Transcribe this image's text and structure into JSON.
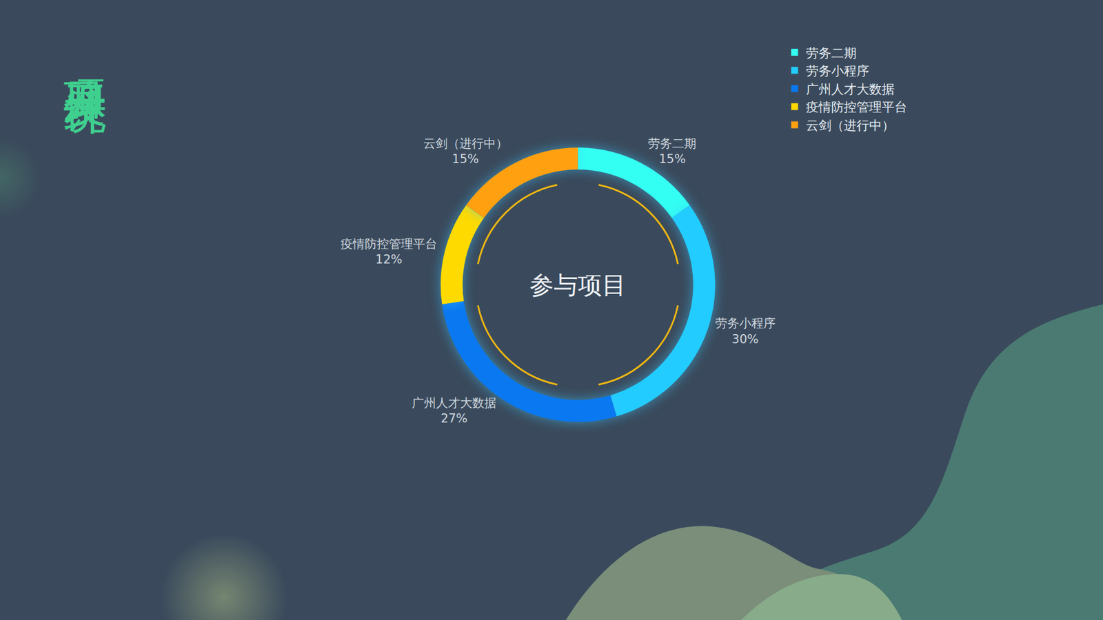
{
  "chart_data": {
    "type": "pie",
    "title": "项目开发统计",
    "center_text": "参与项目",
    "categories": [
      "劳务二期",
      "劳务小程序",
      "广州人才大数据",
      "疫情防控管理平台",
      "云剑（进行中）"
    ],
    "values": [
      15,
      30,
      27,
      12,
      15
    ],
    "value_labels": [
      "15%",
      "30%",
      "27%",
      "12%",
      "15%"
    ],
    "colors": [
      "#33fff2",
      "#22ccff",
      "#0a78f0",
      "#ffda00",
      "#ffa011"
    ],
    "data_labels": true,
    "legend": "top-right"
  }
}
